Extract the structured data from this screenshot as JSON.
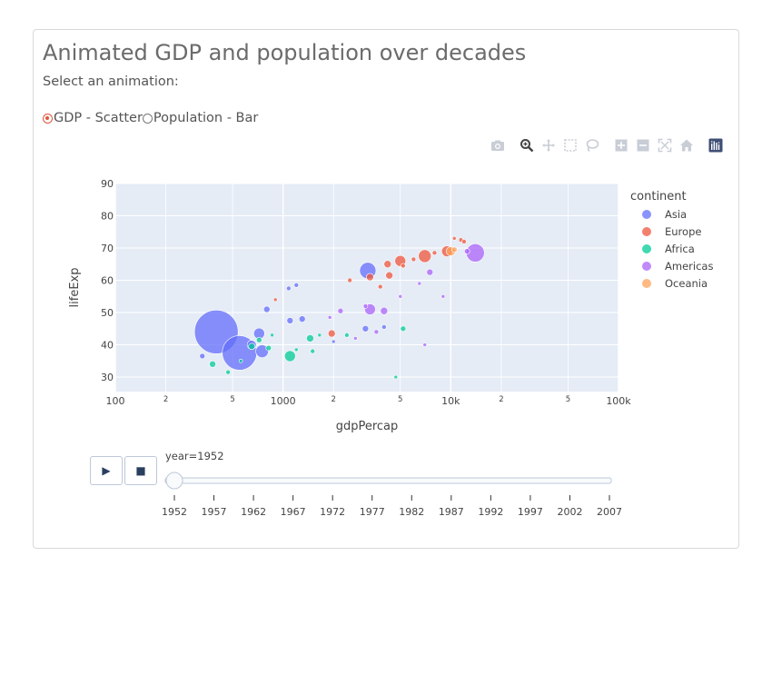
{
  "page": {
    "title": "Animated GDP and population over decades",
    "subtitle": "Select an animation:",
    "radio_options": [
      {
        "label": "GDP - Scatter",
        "selected": true
      },
      {
        "label": "Population - Bar",
        "selected": false
      }
    ]
  },
  "modebar": {
    "buttons": [
      "camera-icon",
      "zoom-icon",
      "pan-icon",
      "box-select-icon",
      "lasso-icon",
      "zoom-in-icon",
      "zoom-out-icon",
      "autoscale-icon",
      "home-icon",
      "plotly-logo-icon"
    ]
  },
  "controls": {
    "play_label": "▶",
    "stop_label": "■",
    "slider_current_label": "year=1952",
    "slider_steps": [
      "1952",
      "1957",
      "1962",
      "1967",
      "1972",
      "1977",
      "1982",
      "1987",
      "1992",
      "1997",
      "2002",
      "2007"
    ],
    "slider_value_index": 0
  },
  "chart_data": {
    "type": "scatter",
    "xlabel": "gdpPercap",
    "ylabel": "lifeExp",
    "x_scale": "log",
    "xlim": [
      100,
      100000
    ],
    "ylim": [
      25.5,
      90
    ],
    "x_ticks": [
      {
        "value": 100,
        "label": "100"
      },
      {
        "value": 200,
        "label": "2"
      },
      {
        "value": 500,
        "label": "5"
      },
      {
        "value": 1000,
        "label": "1000"
      },
      {
        "value": 2000,
        "label": "2"
      },
      {
        "value": 5000,
        "label": "5"
      },
      {
        "value": 10000,
        "label": "10k"
      },
      {
        "value": 20000,
        "label": "2"
      },
      {
        "value": 50000,
        "label": "5"
      },
      {
        "value": 100000,
        "label": "100k"
      }
    ],
    "y_ticks": [
      30,
      40,
      50,
      60,
      70,
      80,
      90
    ],
    "grid": true,
    "legend_title": "continent",
    "legend_position": "right",
    "series": [
      {
        "name": "Asia",
        "color": "#636efa",
        "points": [
          {
            "x": 400,
            "y": 44,
            "size": 24
          },
          {
            "x": 550,
            "y": 37.5,
            "size": 19
          },
          {
            "x": 3200,
            "y": 63,
            "size": 9
          },
          {
            "x": 720,
            "y": 43.5,
            "size": 6
          },
          {
            "x": 650,
            "y": 40,
            "size": 5
          },
          {
            "x": 750,
            "y": 38,
            "size": 7
          },
          {
            "x": 800,
            "y": 51,
            "size": 3.5
          },
          {
            "x": 1100,
            "y": 47.5,
            "size": 3.5
          },
          {
            "x": 1300,
            "y": 48,
            "size": 3.5
          },
          {
            "x": 1080,
            "y": 57.5,
            "size": 2.5
          },
          {
            "x": 1200,
            "y": 58.5,
            "size": 2.5
          },
          {
            "x": 3100,
            "y": 45,
            "size": 3.5
          },
          {
            "x": 4000,
            "y": 45.5,
            "size": 2.5
          },
          {
            "x": 330,
            "y": 36.5,
            "size": 3
          },
          {
            "x": 2000,
            "y": 41,
            "size": 2
          }
        ]
      },
      {
        "name": "Europe",
        "color": "#ef553b",
        "points": [
          {
            "x": 7000,
            "y": 67.5,
            "size": 7
          },
          {
            "x": 9500,
            "y": 69,
            "size": 6
          },
          {
            "x": 5000,
            "y": 66,
            "size": 6
          },
          {
            "x": 4200,
            "y": 65,
            "size": 4
          },
          {
            "x": 3300,
            "y": 61,
            "size": 4
          },
          {
            "x": 4300,
            "y": 61.5,
            "size": 4
          },
          {
            "x": 3800,
            "y": 58,
            "size": 2.5
          },
          {
            "x": 5200,
            "y": 64.5,
            "size": 2.5
          },
          {
            "x": 6000,
            "y": 66.5,
            "size": 2.5
          },
          {
            "x": 8000,
            "y": 68.5,
            "size": 2.5
          },
          {
            "x": 11500,
            "y": 72.5,
            "size": 2.5
          },
          {
            "x": 12000,
            "y": 72,
            "size": 2.5
          },
          {
            "x": 10500,
            "y": 73,
            "size": 2
          },
          {
            "x": 2500,
            "y": 60,
            "size": 2.5
          },
          {
            "x": 1950,
            "y": 43.5,
            "size": 4
          },
          {
            "x": 900,
            "y": 54,
            "size": 2
          }
        ]
      },
      {
        "name": "Africa",
        "color": "#00cc96",
        "points": [
          {
            "x": 1100,
            "y": 36.5,
            "size": 6
          },
          {
            "x": 1450,
            "y": 42,
            "size": 4
          },
          {
            "x": 820,
            "y": 39,
            "size": 3
          },
          {
            "x": 380,
            "y": 34,
            "size": 3.5
          },
          {
            "x": 720,
            "y": 41.5,
            "size": 3
          },
          {
            "x": 650,
            "y": 39.5,
            "size": 3.5
          },
          {
            "x": 5200,
            "y": 45,
            "size": 3
          },
          {
            "x": 4700,
            "y": 30,
            "size": 2
          },
          {
            "x": 2400,
            "y": 43,
            "size": 2.5
          },
          {
            "x": 1500,
            "y": 38,
            "size": 2.5
          },
          {
            "x": 470,
            "y": 31.5,
            "size": 2.5
          },
          {
            "x": 1200,
            "y": 38.5,
            "size": 2
          },
          {
            "x": 1650,
            "y": 43,
            "size": 2
          },
          {
            "x": 860,
            "y": 43,
            "size": 2
          },
          {
            "x": 560,
            "y": 35,
            "size": 2
          }
        ]
      },
      {
        "name": "Americas",
        "color": "#ab63fa",
        "points": [
          {
            "x": 14000,
            "y": 68.5,
            "size": 10
          },
          {
            "x": 3300,
            "y": 51,
            "size": 6
          },
          {
            "x": 4000,
            "y": 50.5,
            "size": 4
          },
          {
            "x": 7500,
            "y": 62.5,
            "size": 3.5
          },
          {
            "x": 12500,
            "y": 69,
            "size": 3
          },
          {
            "x": 6500,
            "y": 59,
            "size": 2
          },
          {
            "x": 5000,
            "y": 55,
            "size": 2
          },
          {
            "x": 2200,
            "y": 50.5,
            "size": 3
          },
          {
            "x": 3100,
            "y": 52,
            "size": 2.5
          },
          {
            "x": 2700,
            "y": 42,
            "size": 2
          },
          {
            "x": 9000,
            "y": 55,
            "size": 2
          },
          {
            "x": 1900,
            "y": 48.5,
            "size": 2
          },
          {
            "x": 3600,
            "y": 44,
            "size": 2.5
          },
          {
            "x": 7000,
            "y": 40,
            "size": 2
          }
        ]
      },
      {
        "name": "Oceania",
        "color": "#ffa15a",
        "points": [
          {
            "x": 10000,
            "y": 69,
            "size": 5
          },
          {
            "x": 10500,
            "y": 69.5,
            "size": 3
          }
        ]
      }
    ]
  }
}
